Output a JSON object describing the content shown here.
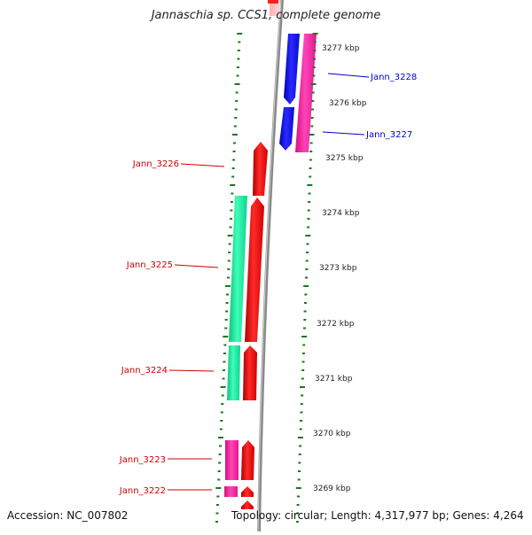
{
  "title": "Jannaschia sp. CCS1, complete genome",
  "footer": {
    "accession": "Accession: NC_007802",
    "summary": "Topology: circular; Length: 4,317,977 bp; Genes: 4,264"
  },
  "colors": {
    "reverse_label": "#cc0000",
    "forward_label": "#0000cc",
    "tick": "#1a7a1a",
    "backbone": "#888888",
    "red": "#ff0000",
    "green": "#22ffaa",
    "magenta": "#ff2aa6",
    "blue": "#1010ee"
  },
  "ruler_labels": [
    "3277 kbp",
    "3276 kbp",
    "3275 kbp",
    "3274 kbp",
    "3273 kbp",
    "3272 kbp",
    "3271 kbp",
    "3270 kbp",
    "3269 kbp"
  ],
  "genes": [
    {
      "name": "Jann_3228",
      "strand": "forward"
    },
    {
      "name": "Jann_3227",
      "strand": "forward"
    },
    {
      "name": "Jann_3226",
      "strand": "reverse"
    },
    {
      "name": "Jann_3225",
      "strand": "reverse"
    },
    {
      "name": "Jann_3224",
      "strand": "reverse"
    },
    {
      "name": "Jann_3223",
      "strand": "reverse"
    },
    {
      "name": "Jann_3222",
      "strand": "reverse"
    }
  ]
}
